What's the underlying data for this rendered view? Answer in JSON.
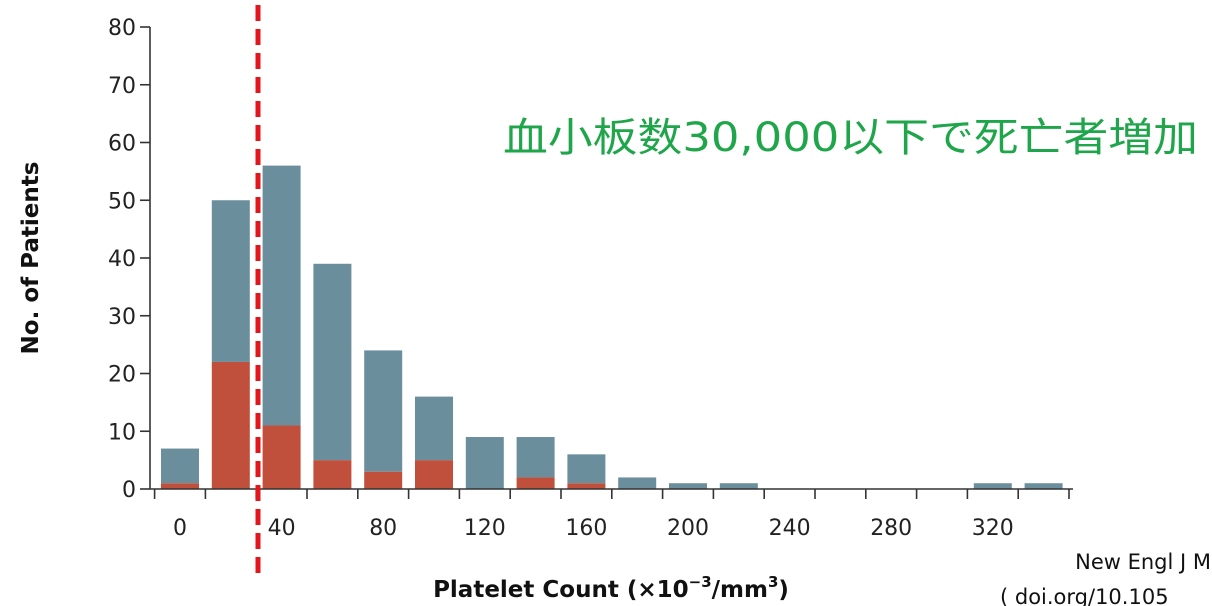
{
  "chart_data": {
    "type": "bar",
    "stacked": true,
    "bin_width": 20,
    "bin_starts": [
      0,
      20,
      40,
      60,
      80,
      100,
      120,
      140,
      160,
      180,
      200,
      220,
      240,
      260,
      280,
      300,
      320,
      340
    ],
    "series": [
      {
        "values": [
          1,
          22,
          11,
          5,
          3,
          5,
          0,
          2,
          1,
          0,
          0,
          0,
          0,
          0,
          0,
          0,
          0,
          0
        ],
        "color": "#c0503c"
      },
      {
        "values": [
          6,
          28,
          45,
          34,
          21,
          11,
          9,
          7,
          5,
          2,
          1,
          1,
          0,
          0,
          0,
          0,
          1,
          1
        ],
        "color": "#6b8e9c"
      }
    ],
    "xlabel_main": "Platelet Count (×10",
    "xlabel_sup1": "−3",
    "xlabel_mid": "/mm",
    "xlabel_sup2": "3",
    "xlabel_end": ")",
    "ylabel": "No. of Patients",
    "xticks": [
      0,
      40,
      80,
      120,
      160,
      200,
      240,
      280,
      320
    ],
    "xlim": [
      -5,
      350
    ],
    "yticks": [
      0,
      10,
      20,
      30,
      40,
      50,
      60,
      70,
      80
    ],
    "ylim": [
      0,
      80
    ],
    "threshold": {
      "x": 30,
      "color": "#e3171b",
      "style": "dashed"
    },
    "annotation": "血小板数30,000以下で死亡者増加",
    "annotation_color": "#1fa64a",
    "source_line1": "New Engl J M",
    "source_line2": "( doi.org/10.105"
  }
}
